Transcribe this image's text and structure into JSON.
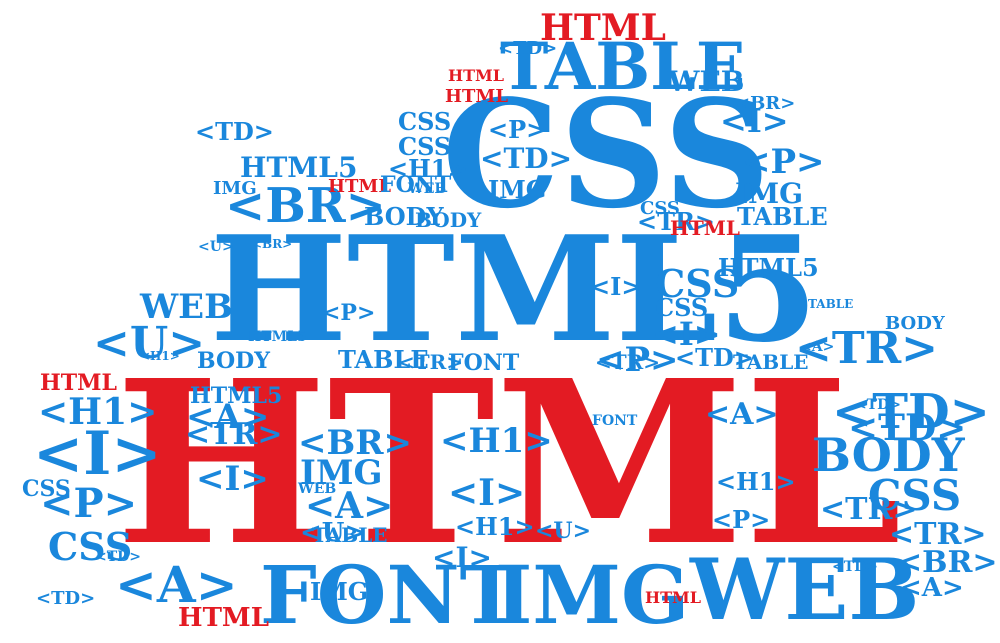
{
  "colors": {
    "blue": "#1a87dc",
    "red": "#e31b23",
    "background": "#ffffff"
  },
  "words": [
    {
      "id": "w1",
      "text": "HTML"
    },
    {
      "id": "w2",
      "text": "HTML5"
    },
    {
      "id": "w3",
      "text": "CSS"
    },
    {
      "id": "w4",
      "text": "TABLE"
    },
    {
      "id": "w5",
      "text": "HTML"
    },
    {
      "id": "w6",
      "text": "FONT"
    },
    {
      "id": "w7",
      "text": "IMG"
    },
    {
      "id": "w8",
      "text": "WEB"
    },
    {
      "id": "w9",
      "text": "<BR>"
    },
    {
      "id": "w10",
      "text": "BODY"
    },
    {
      "id": "w11",
      "text": "<TD>"
    },
    {
      "id": "w12",
      "text": "<TR>"
    },
    {
      "id": "w13",
      "text": "<U>"
    },
    {
      "id": "w14",
      "text": "<I>"
    },
    {
      "id": "w15",
      "text": "<P>"
    },
    {
      "id": "w16",
      "text": "<A>"
    },
    {
      "id": "w17",
      "text": "<H1>"
    },
    {
      "id": "w18",
      "text": "CSS"
    },
    {
      "id": "w19",
      "text": "HTML5"
    },
    {
      "id": "w20",
      "text": "WEB"
    },
    {
      "id": "w21",
      "text": "<I>"
    },
    {
      "id": "w22",
      "text": "<P>"
    },
    {
      "id": "w23",
      "text": "<TD>"
    },
    {
      "id": "w24",
      "text": "TABLE"
    },
    {
      "id": "w25",
      "text": "WEB"
    },
    {
      "id": "w26",
      "text": "<A>"
    },
    {
      "id": "w27",
      "text": "<BR>"
    },
    {
      "id": "w28",
      "text": "<TR>"
    },
    {
      "id": "w29",
      "text": "IMG"
    },
    {
      "id": "w30",
      "text": "HTML"
    },
    {
      "id": "w31",
      "text": "BODY"
    },
    {
      "id": "w32",
      "text": "HTML"
    },
    {
      "id": "w33",
      "text": "<BR>"
    },
    {
      "id": "w34",
      "text": "CSS"
    },
    {
      "id": "w35",
      "text": "<TD>"
    },
    {
      "id": "w36",
      "text": "<H1>"
    },
    {
      "id": "w37",
      "text": "<P>"
    },
    {
      "id": "w38",
      "text": "IMG"
    },
    {
      "id": "w39",
      "text": "CSS"
    },
    {
      "id": "w40",
      "text": "IMG"
    },
    {
      "id": "w41",
      "text": "<I>"
    },
    {
      "id": "w42",
      "text": "<A>"
    },
    {
      "id": "w43",
      "text": "<I>"
    },
    {
      "id": "w44",
      "text": "CSS"
    },
    {
      "id": "w45",
      "text": "HTML"
    },
    {
      "id": "w46",
      "text": "<H1>"
    },
    {
      "id": "w47",
      "text": "<I>"
    },
    {
      "id": "w48",
      "text": "<TD>"
    },
    {
      "id": "w49",
      "text": "<TR>"
    },
    {
      "id": "w50",
      "text": "HTML"
    },
    {
      "id": "w51",
      "text": "IMG"
    },
    {
      "id": "w52",
      "text": "CSS"
    },
    {
      "id": "w53",
      "text": "FONT"
    },
    {
      "id": "w54",
      "text": "HTML5"
    },
    {
      "id": "w55",
      "text": "<TR>"
    },
    {
      "id": "w56",
      "text": "TABLE"
    },
    {
      "id": "w57",
      "text": "FONT"
    },
    {
      "id": "w58",
      "text": "<P>"
    },
    {
      "id": "w59",
      "text": "<TD>"
    },
    {
      "id": "w60",
      "text": "<TR>"
    },
    {
      "id": "w61",
      "text": "TABLE"
    },
    {
      "id": "w62",
      "text": "<TD>"
    },
    {
      "id": "w63",
      "text": "BODY"
    },
    {
      "id": "w64",
      "text": "CSS"
    },
    {
      "id": "w65",
      "text": "<TR>"
    },
    {
      "id": "w66",
      "text": "BODY"
    },
    {
      "id": "w67",
      "text": "<TD>"
    },
    {
      "id": "w68",
      "text": "<BR>"
    },
    {
      "id": "w69",
      "text": "<A>"
    },
    {
      "id": "w70",
      "text": "HTML"
    },
    {
      "id": "w71",
      "text": "IMG"
    },
    {
      "id": "w72",
      "text": "<U>"
    },
    {
      "id": "w73",
      "text": "<A>"
    },
    {
      "id": "w74",
      "text": "<H1>"
    },
    {
      "id": "w75",
      "text": "<I>"
    },
    {
      "id": "w76",
      "text": "CSS"
    },
    {
      "id": "w77",
      "text": "HTML"
    },
    {
      "id": "w78",
      "text": "<TD>"
    },
    {
      "id": "w79",
      "text": "<TR>"
    },
    {
      "id": "w80",
      "text": "<H1>"
    },
    {
      "id": "w81",
      "text": "HTML5"
    },
    {
      "id": "w82",
      "text": "WEB"
    },
    {
      "id": "w83",
      "text": "TABLE"
    },
    {
      "id": "w84",
      "text": "<P>"
    },
    {
      "id": "w85",
      "text": "<BR>"
    },
    {
      "id": "w86",
      "text": "WEB"
    },
    {
      "id": "w87",
      "text": "<A>"
    },
    {
      "id": "w88",
      "text": "<U>"
    },
    {
      "id": "w89",
      "text": "<TD>"
    },
    {
      "id": "w90",
      "text": "<I>"
    },
    {
      "id": "w91",
      "text": "<P>"
    },
    {
      "id": "w92",
      "text": "FONT"
    },
    {
      "id": "w93",
      "text": "TABLE"
    },
    {
      "id": "w94",
      "text": "BODY"
    },
    {
      "id": "w95",
      "text": "HTML"
    },
    {
      "id": "w96",
      "text": "<U>"
    },
    {
      "id": "w97",
      "text": "<H1>"
    },
    {
      "id": "w98",
      "text": "<TD>"
    },
    {
      "id": "w99",
      "text": "CSS"
    },
    {
      "id": "w100",
      "text": "HTML5"
    }
  ]
}
